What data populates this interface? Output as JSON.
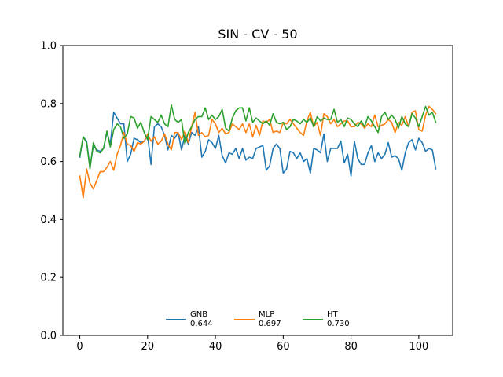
{
  "chart_data": {
    "type": "line",
    "title": "SIN - CV - 50",
    "xlabel": "",
    "ylabel": "",
    "xlim": [
      -5,
      110
    ],
    "ylim": [
      0,
      1
    ],
    "x_ticks": [
      0,
      20,
      40,
      60,
      80,
      100
    ],
    "x_tick_labels": [
      "0",
      "20",
      "40",
      "60",
      "80",
      "100"
    ],
    "y_ticks": [
      0,
      0.2,
      0.4,
      0.6,
      0.8,
      1.0
    ],
    "y_tick_labels": [
      "0.0",
      "0.2",
      "0.4",
      "0.6",
      "0.8",
      "1.0"
    ],
    "grid": false,
    "legend_position": "lower center",
    "series": [
      {
        "name": "GNB",
        "legend_value": "0.644",
        "color": "#1f77b4",
        "values": [
          0.615,
          0.685,
          0.67,
          0.58,
          0.655,
          0.64,
          0.635,
          0.645,
          0.7,
          0.66,
          0.77,
          0.75,
          0.73,
          0.73,
          0.6,
          0.625,
          0.68,
          0.675,
          0.665,
          0.67,
          0.69,
          0.59,
          0.72,
          0.73,
          0.72,
          0.69,
          0.64,
          0.69,
          0.68,
          0.7,
          0.64,
          0.69,
          0.66,
          0.7,
          0.69,
          0.72,
          0.615,
          0.635,
          0.675,
          0.665,
          0.645,
          0.69,
          0.62,
          0.595,
          0.63,
          0.625,
          0.645,
          0.61,
          0.645,
          0.605,
          0.615,
          0.61,
          0.645,
          0.65,
          0.655,
          0.57,
          0.585,
          0.645,
          0.66,
          0.645,
          0.56,
          0.575,
          0.635,
          0.63,
          0.61,
          0.63,
          0.6,
          0.61,
          0.56,
          0.645,
          0.64,
          0.63,
          0.695,
          0.6,
          0.645,
          0.645,
          0.645,
          0.67,
          0.595,
          0.625,
          0.55,
          0.67,
          0.61,
          0.59,
          0.59,
          0.63,
          0.655,
          0.6,
          0.63,
          0.61,
          0.625,
          0.665,
          0.615,
          0.62,
          0.61,
          0.57,
          0.63,
          0.665,
          0.675,
          0.64,
          0.68,
          0.665,
          0.635,
          0.645,
          0.64,
          0.575
        ]
      },
      {
        "name": "MLP",
        "legend_value": "0.697",
        "color": "#ff7f0e",
        "values": [
          0.55,
          0.475,
          0.575,
          0.525,
          0.505,
          0.535,
          0.565,
          0.565,
          0.58,
          0.6,
          0.57,
          0.625,
          0.655,
          0.7,
          0.66,
          0.655,
          0.635,
          0.665,
          0.66,
          0.67,
          0.695,
          0.67,
          0.685,
          0.66,
          0.67,
          0.695,
          0.66,
          0.64,
          0.7,
          0.7,
          0.675,
          0.705,
          0.665,
          0.72,
          0.77,
          0.69,
          0.7,
          0.685,
          0.69,
          0.745,
          0.73,
          0.7,
          0.715,
          0.695,
          0.7,
          0.73,
          0.72,
          0.71,
          0.73,
          0.7,
          0.73,
          0.685,
          0.725,
          0.69,
          0.74,
          0.735,
          0.745,
          0.7,
          0.705,
          0.7,
          0.735,
          0.73,
          0.745,
          0.73,
          0.715,
          0.7,
          0.69,
          0.74,
          0.77,
          0.72,
          0.735,
          0.69,
          0.765,
          0.755,
          0.73,
          0.745,
          0.72,
          0.73,
          0.74,
          0.74,
          0.72,
          0.72,
          0.735,
          0.73,
          0.715,
          0.73,
          0.72,
          0.76,
          0.72,
          0.725,
          0.73,
          0.745,
          0.735,
          0.7,
          0.735,
          0.725,
          0.755,
          0.72,
          0.77,
          0.775,
          0.71,
          0.705,
          0.76,
          0.79,
          0.78,
          0.765
        ]
      },
      {
        "name": "HT",
        "legend_value": "0.730",
        "color": "#2ca02c",
        "values": [
          0.62,
          0.685,
          0.665,
          0.575,
          0.665,
          0.635,
          0.63,
          0.645,
          0.705,
          0.65,
          0.71,
          0.73,
          0.72,
          0.68,
          0.695,
          0.755,
          0.75,
          0.715,
          0.735,
          0.7,
          0.675,
          0.755,
          0.745,
          0.735,
          0.76,
          0.73,
          0.72,
          0.795,
          0.745,
          0.735,
          0.745,
          0.66,
          0.7,
          0.72,
          0.745,
          0.755,
          0.755,
          0.785,
          0.745,
          0.76,
          0.745,
          0.755,
          0.78,
          0.715,
          0.705,
          0.75,
          0.775,
          0.785,
          0.785,
          0.74,
          0.785,
          0.735,
          0.75,
          0.74,
          0.73,
          0.74,
          0.725,
          0.765,
          0.735,
          0.73,
          0.735,
          0.71,
          0.72,
          0.745,
          0.74,
          0.73,
          0.745,
          0.735,
          0.75,
          0.72,
          0.755,
          0.74,
          0.75,
          0.745,
          0.745,
          0.78,
          0.735,
          0.745,
          0.72,
          0.75,
          0.745,
          0.73,
          0.72,
          0.74,
          0.72,
          0.755,
          0.74,
          0.72,
          0.7,
          0.755,
          0.77,
          0.745,
          0.76,
          0.745,
          0.715,
          0.755,
          0.73,
          0.72,
          0.765,
          0.75,
          0.72,
          0.755,
          0.79,
          0.76,
          0.77,
          0.735
        ]
      }
    ]
  }
}
